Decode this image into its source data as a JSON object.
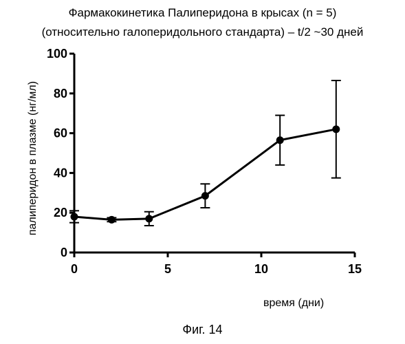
{
  "chart_data": {
    "type": "line",
    "title": "Фармакокинетика Палиперидона в крысах (n = 5)",
    "subtitle": "(относительно галоперидольного стандарта) – t/2 ~30 дней",
    "xlabel": "время (дни)",
    "ylabel": "палиперидон в плазме (нг/мл)",
    "xlim": [
      0,
      15
    ],
    "ylim": [
      0,
      100
    ],
    "x_ticks": [
      0,
      5,
      10,
      15
    ],
    "y_ticks": [
      0,
      20,
      40,
      60,
      80,
      100
    ],
    "grid": false,
    "series": [
      {
        "x": [
          0,
          2,
          4,
          7,
          11,
          14
        ],
        "y": [
          18,
          16.5,
          17,
          28.5,
          56.5,
          62
        ],
        "error": [
          3,
          1,
          3.5,
          6,
          12.5,
          24.5
        ]
      }
    ]
  },
  "caption": "Фиг. 14"
}
